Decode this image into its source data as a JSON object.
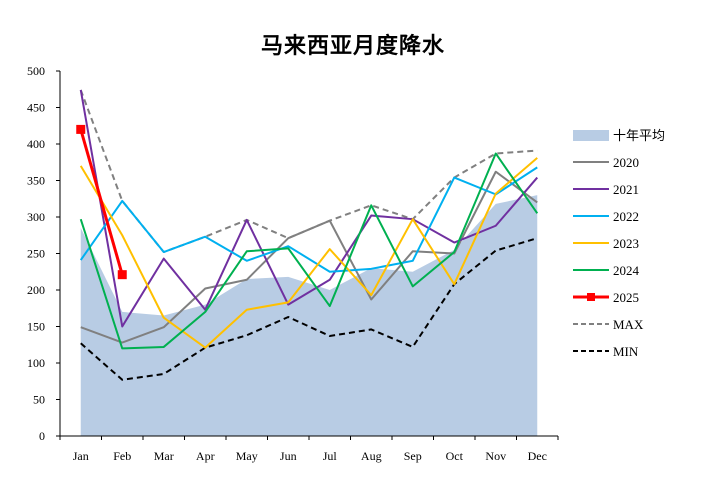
{
  "chart_data": {
    "type": "line",
    "title": "马来西亚月度降水",
    "xlabel": "",
    "ylabel": "",
    "categories": [
      "Jan",
      "Feb",
      "Mar",
      "Apr",
      "May",
      "Jun",
      "Jul",
      "Aug",
      "Sep",
      "Oct",
      "Nov",
      "Dec"
    ],
    "ylim": [
      0,
      500
    ],
    "yticks": [
      0,
      50,
      100,
      150,
      200,
      250,
      300,
      350,
      400,
      450,
      500
    ],
    "grid": false,
    "legend_position": "right",
    "area": {
      "name": "十年平均",
      "color": "#b8cce4",
      "values": [
        285,
        170,
        165,
        180,
        215,
        218,
        200,
        230,
        225,
        255,
        318,
        330
      ]
    },
    "series": [
      {
        "name": "2020",
        "color": "#808080",
        "style": "solid",
        "marker": "none",
        "values": [
          149,
          128,
          149,
          202,
          214,
          271,
          295,
          187,
          253,
          250,
          362,
          320
        ]
      },
      {
        "name": "2021",
        "color": "#7030a0",
        "style": "solid",
        "marker": "none",
        "values": [
          474,
          150,
          243,
          173,
          296,
          180,
          214,
          302,
          297,
          265,
          288,
          354
        ]
      },
      {
        "name": "2022",
        "color": "#00b0f0",
        "style": "solid",
        "marker": "none",
        "values": [
          241,
          322,
          252,
          273,
          240,
          260,
          225,
          229,
          240,
          354,
          331,
          368
        ]
      },
      {
        "name": "2023",
        "color": "#ffc000",
        "style": "solid",
        "marker": "none",
        "values": [
          370,
          275,
          162,
          121,
          173,
          183,
          256,
          193,
          297,
          208,
          332,
          381
        ]
      },
      {
        "name": "2024",
        "color": "#00b050",
        "style": "solid",
        "marker": "none",
        "values": [
          297,
          120,
          122,
          170,
          253,
          257,
          178,
          316,
          205,
          252,
          387,
          305
        ]
      },
      {
        "name": "2025",
        "color": "#ff0000",
        "style": "solid",
        "marker": "square",
        "values": [
          420,
          221,
          null,
          null,
          null,
          null,
          null,
          null,
          null,
          null,
          null,
          null
        ]
      },
      {
        "name": "MAX",
        "color": "#808080",
        "style": "dashed",
        "marker": "none",
        "values": [
          474,
          322,
          252,
          273,
          296,
          271,
          295,
          316,
          297,
          354,
          387,
          391
        ]
      },
      {
        "name": "MIN",
        "color": "#000000",
        "style": "dashed",
        "marker": "none",
        "values": [
          127,
          77,
          85,
          121,
          138,
          163,
          137,
          146,
          122,
          208,
          254,
          271
        ]
      }
    ]
  }
}
